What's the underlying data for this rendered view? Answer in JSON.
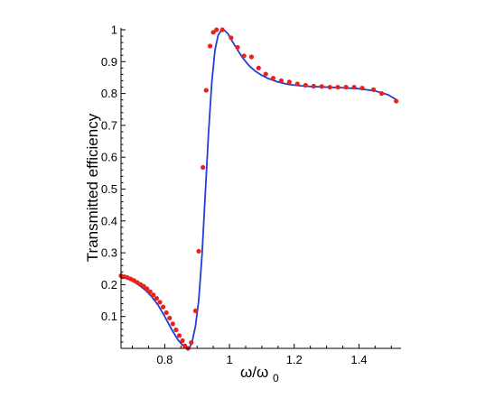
{
  "chart_data": {
    "type": "line",
    "title": "",
    "xlabel_main": "ω/ω",
    "xlabel_sub": "0",
    "ylabel": "Transmitted efficiency",
    "xlim": [
      0.665,
      1.53
    ],
    "ylim": [
      0,
      1.0
    ],
    "x_ticks": [
      {
        "value": 0.8,
        "label": "0.8"
      },
      {
        "value": 1.0,
        "label": "1"
      },
      {
        "value": 1.2,
        "label": "1.2"
      },
      {
        "value": 1.4,
        "label": "1.4"
      }
    ],
    "y_ticks": [
      {
        "value": 0.1,
        "label": "0.1"
      },
      {
        "value": 0.2,
        "label": "0.2"
      },
      {
        "value": 0.3,
        "label": "0.3"
      },
      {
        "value": 0.4,
        "label": "0.4"
      },
      {
        "value": 0.5,
        "label": "0.5"
      },
      {
        "value": 0.6,
        "label": "0.6"
      },
      {
        "value": 0.7,
        "label": "0.7"
      },
      {
        "value": 0.8,
        "label": "0.8"
      },
      {
        "value": 0.9,
        "label": "0.9"
      },
      {
        "value": 1.0,
        "label": "1"
      }
    ],
    "grid": false,
    "legend": "none",
    "colors": {
      "curve": "#1f3fd6",
      "points": "#e8231a",
      "axes": "#000000"
    },
    "series": [
      {
        "kind": "curve",
        "x": [
          0.665,
          0.68,
          0.7,
          0.72,
          0.74,
          0.76,
          0.78,
          0.8,
          0.82,
          0.84,
          0.855,
          0.865,
          0.872,
          0.878,
          0.885,
          0.895,
          0.905,
          0.915,
          0.925,
          0.935,
          0.945,
          0.955,
          0.965,
          0.975,
          0.985,
          0.995,
          1.005,
          1.02,
          1.04,
          1.06,
          1.08,
          1.1,
          1.12,
          1.15,
          1.18,
          1.21,
          1.25,
          1.3,
          1.35,
          1.4,
          1.45,
          1.49,
          1.52
        ],
        "y": [
          0.226,
          0.221,
          0.212,
          0.199,
          0.183,
          0.162,
          0.135,
          0.1,
          0.062,
          0.028,
          0.01,
          0.003,
          0.0,
          0.005,
          0.022,
          0.07,
          0.15,
          0.29,
          0.48,
          0.67,
          0.83,
          0.935,
          0.983,
          0.999,
          0.998,
          0.988,
          0.97,
          0.945,
          0.913,
          0.888,
          0.87,
          0.857,
          0.847,
          0.836,
          0.829,
          0.825,
          0.822,
          0.82,
          0.818,
          0.815,
          0.808,
          0.796,
          0.778
        ]
      },
      {
        "kind": "points",
        "x": [
          0.665,
          0.675,
          0.685,
          0.695,
          0.705,
          0.715,
          0.725,
          0.735,
          0.745,
          0.755,
          0.765,
          0.775,
          0.785,
          0.795,
          0.805,
          0.815,
          0.825,
          0.835,
          0.845,
          0.855,
          0.862,
          0.872,
          0.882,
          0.895,
          0.905,
          0.918,
          0.928,
          0.94,
          0.95,
          0.96,
          0.978,
          1.005,
          1.025,
          1.045,
          1.068,
          1.09,
          1.112,
          1.135,
          1.16,
          1.185,
          1.21,
          1.235,
          1.26,
          1.285,
          1.31,
          1.335,
          1.36,
          1.385,
          1.41,
          1.445,
          1.47,
          1.515
        ],
        "y": [
          0.228,
          0.225,
          0.222,
          0.218,
          0.213,
          0.207,
          0.201,
          0.195,
          0.187,
          0.178,
          0.168,
          0.157,
          0.145,
          0.13,
          0.112,
          0.095,
          0.077,
          0.058,
          0.04,
          0.024,
          0.008,
          0.0,
          0.018,
          0.118,
          0.305,
          0.568,
          0.81,
          0.949,
          0.992,
          1.0,
          1.0,
          0.975,
          0.945,
          0.918,
          0.915,
          0.88,
          0.861,
          0.848,
          0.84,
          0.836,
          0.83,
          0.826,
          0.823,
          0.822,
          0.82,
          0.82,
          0.82,
          0.82,
          0.817,
          0.812,
          0.8,
          0.776
        ]
      }
    ]
  }
}
